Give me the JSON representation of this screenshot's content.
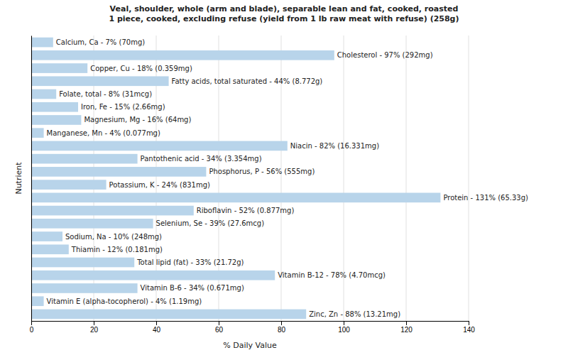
{
  "chart_data": {
    "type": "bar",
    "orientation": "horizontal",
    "title": "Veal, shoulder, whole (arm and blade), separable lean and fat, cooked, roasted\n1 piece, cooked, excluding refuse (yield from 1 lb raw meat with refuse) (258g)",
    "xlabel": "% Daily Value",
    "ylabel": "Nutrient",
    "categories": [
      "Calcium, Ca - 7% (70mg)",
      "Cholesterol - 97% (292mg)",
      "Copper, Cu - 18% (0.359mg)",
      "Fatty acids, total saturated - 44% (8.772g)",
      "Folate, total - 8% (31mcg)",
      "Iron, Fe - 15% (2.66mg)",
      "Magnesium, Mg - 16% (64mg)",
      "Manganese, Mn - 4% (0.077mg)",
      "Niacin - 82% (16.331mg)",
      "Pantothenic acid - 34% (3.354mg)",
      "Phosphorus, P - 56% (555mg)",
      "Potassium, K - 24% (831mg)",
      "Protein - 131% (65.33g)",
      "Riboflavin - 52% (0.877mg)",
      "Selenium, Se - 39% (27.6mcg)",
      "Sodium, Na - 10% (248mg)",
      "Thiamin - 12% (0.181mg)",
      "Total lipid (fat) - 33% (21.72g)",
      "Vitamin B-12 - 78% (4.70mcg)",
      "Vitamin B-6 - 34% (0.671mg)",
      "Vitamin E (alpha-tocopherol) - 4% (1.19mg)",
      "Zinc, Zn - 88% (13.21mg)"
    ],
    "values": [
      7,
      97,
      18,
      44,
      8,
      15,
      16,
      4,
      82,
      34,
      56,
      24,
      131,
      52,
      39,
      10,
      12,
      33,
      78,
      34,
      4,
      88
    ],
    "color": "#b8d4ea",
    "xlim": [
      0,
      140
    ],
    "xticks": [
      0,
      20,
      40,
      60,
      80,
      100,
      120,
      140
    ],
    "grid": true,
    "tick_labels": "x"
  }
}
